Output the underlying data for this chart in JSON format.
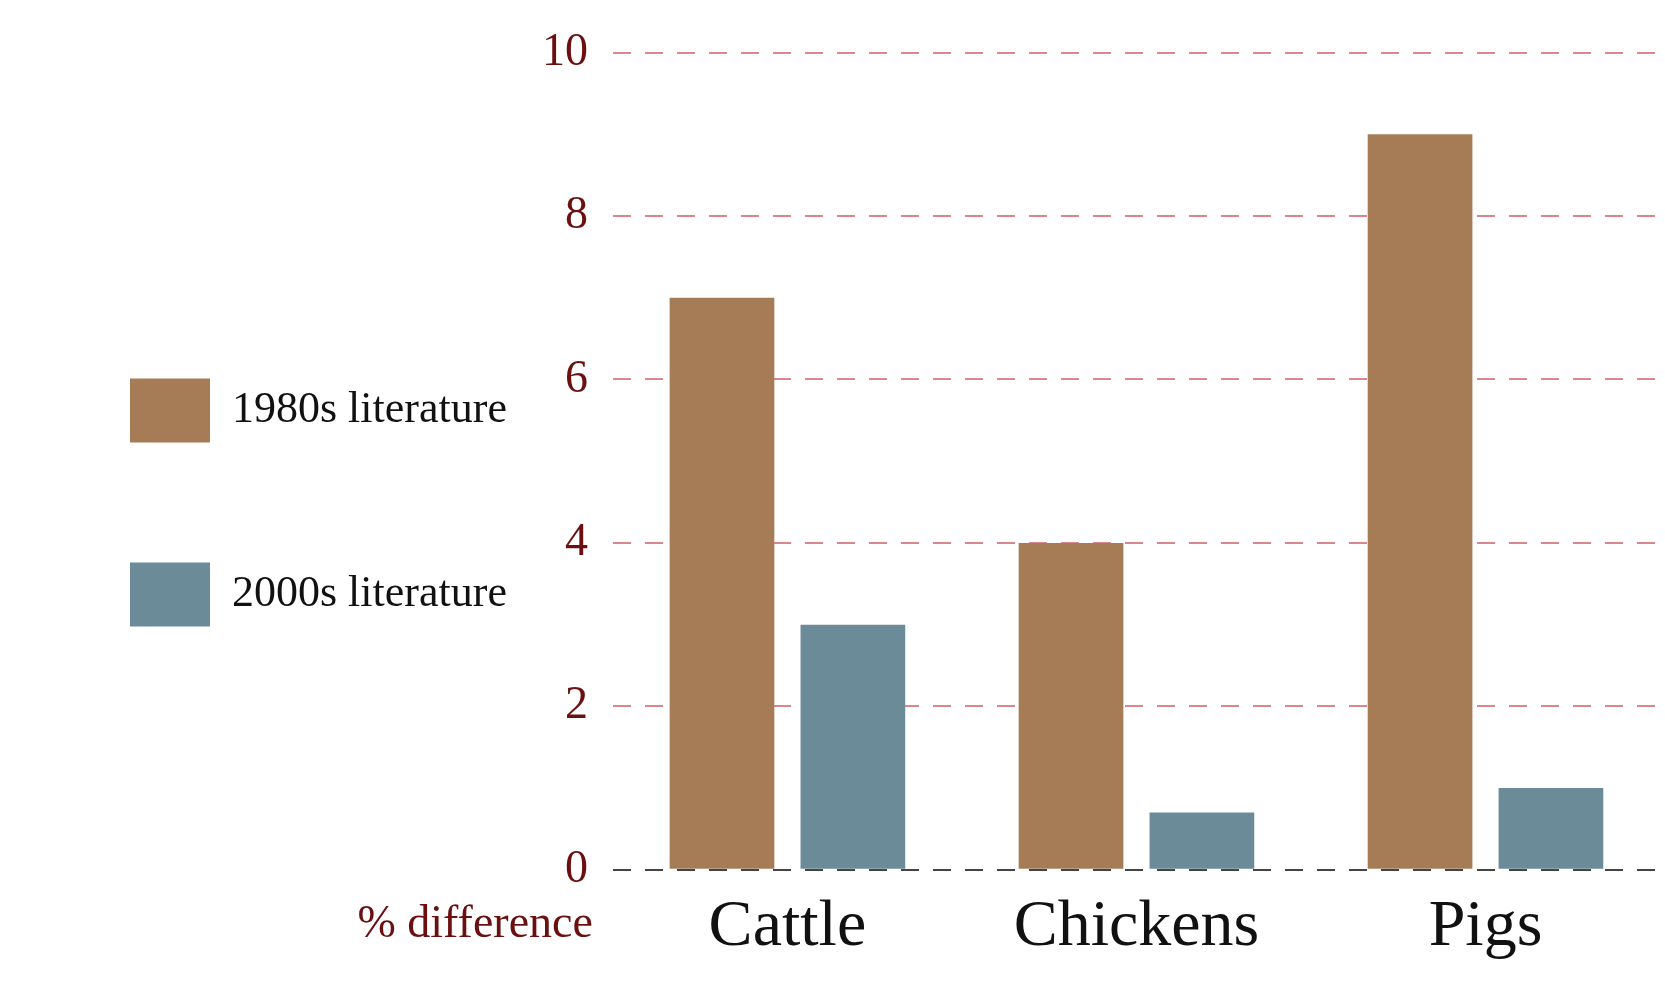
{
  "chart_data": {
    "type": "bar",
    "ylabel": "% difference",
    "categories": [
      "Cattle",
      "Chickens",
      "Pigs"
    ],
    "series": [
      {
        "name": "1980s literature",
        "color": "#a67c56",
        "values": [
          7,
          4,
          9
        ]
      },
      {
        "name": "2000s literature",
        "color": "#6c8b98",
        "values": [
          3,
          0.7,
          1
        ]
      }
    ],
    "ylim": [
      0,
      10
    ],
    "yticks": [
      0,
      2,
      4,
      6,
      8,
      10
    ],
    "grid": "y",
    "legend": "left"
  }
}
